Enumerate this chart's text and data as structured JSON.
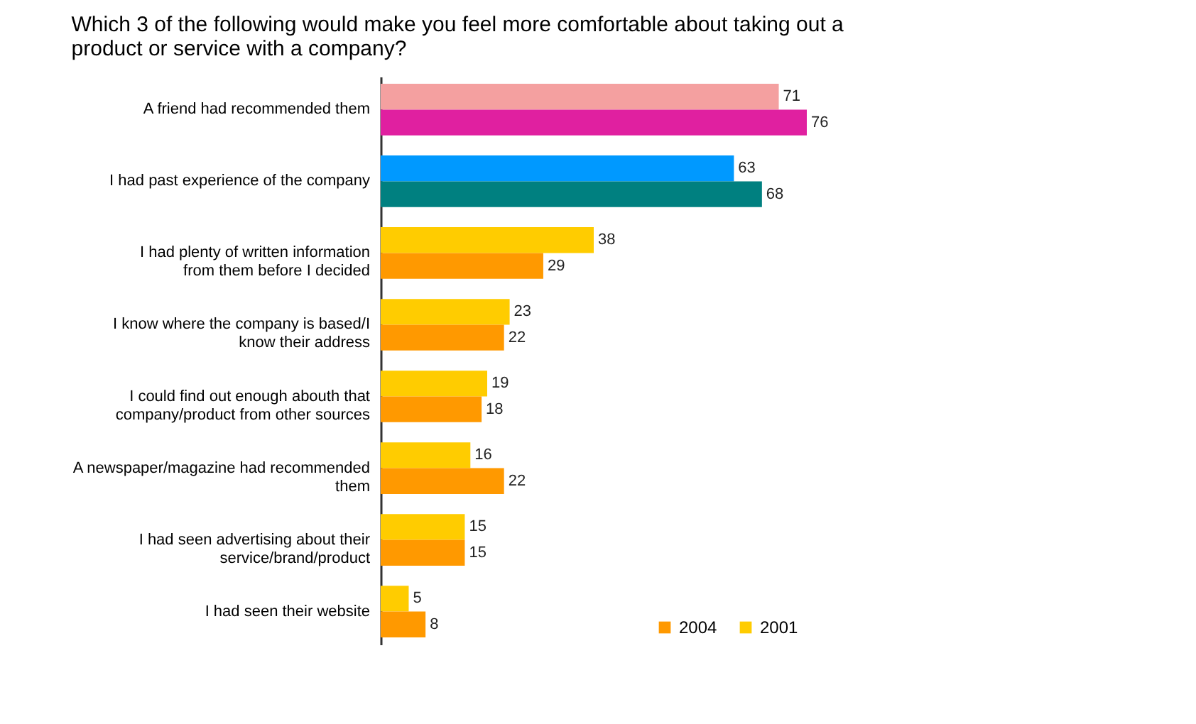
{
  "chart_data": {
    "type": "bar",
    "orientation": "horizontal",
    "title": "Which 3 of the following would make you feel more comfortable about taking out a product or service with a company?",
    "categories": [
      "A friend had recommended them",
      "I had past experience of the company",
      "I had plenty of written information from them before I decided",
      "I know where the company is based/I know their address",
      "I could find out enough abouth that company/product from other sources",
      "A newspaper/magazine had recommended them",
      "I had seen advertising about their service/brand/product",
      "I had seen their website"
    ],
    "series": [
      {
        "name": "2001",
        "color": "#ffcc00",
        "colors": [
          "#f4a0a0",
          "#0099ff",
          "#ffcc00",
          "#ffcc00",
          "#ffcc00",
          "#ffcc00",
          "#ffcc00",
          "#ffcc00"
        ],
        "values": [
          71,
          63,
          38,
          23,
          19,
          16,
          15,
          5
        ]
      },
      {
        "name": "2004",
        "color": "#ff9900",
        "colors": [
          "#e020a0",
          "#008080",
          "#ff9900",
          "#ff9900",
          "#ff9900",
          "#ff9900",
          "#ff9900",
          "#ff9900"
        ],
        "values": [
          76,
          68,
          29,
          22,
          18,
          22,
          15,
          8
        ]
      }
    ],
    "data_labels": true,
    "legend": "bottom right"
  }
}
